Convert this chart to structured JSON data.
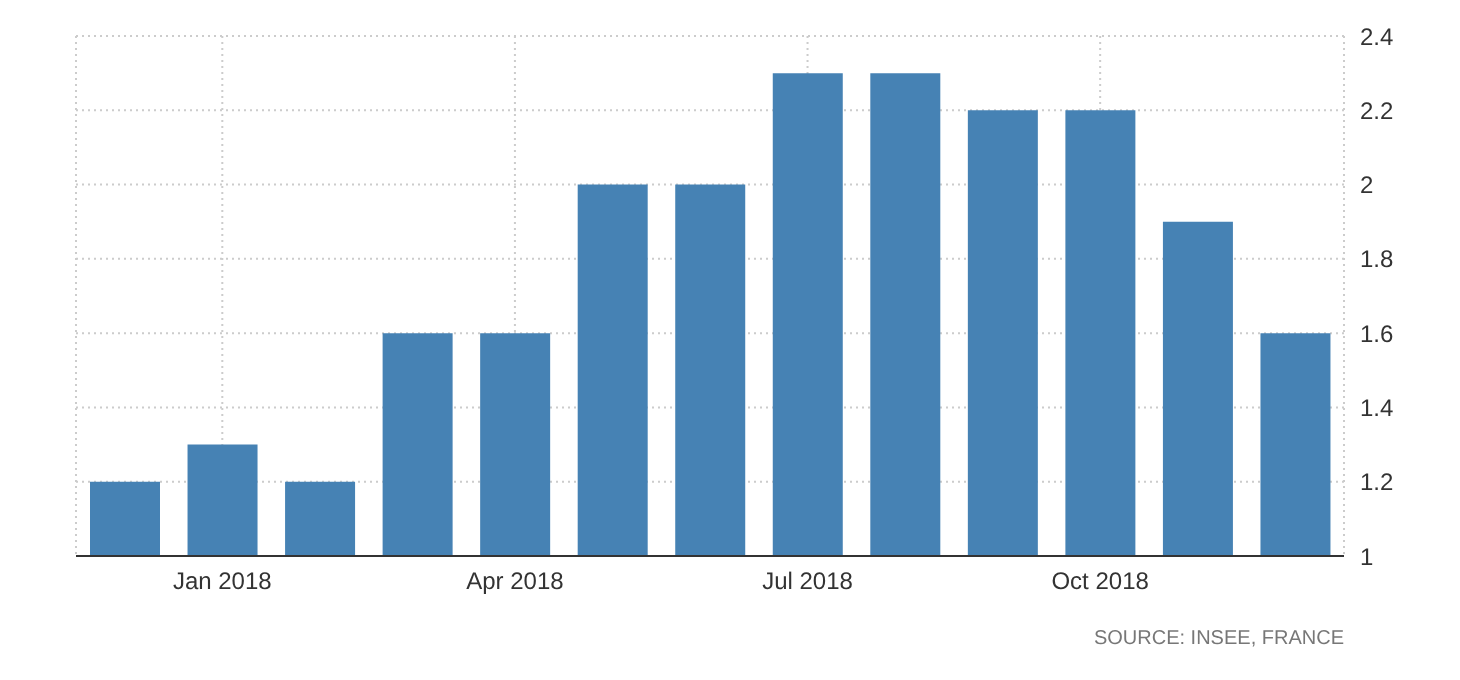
{
  "chart_data": {
    "type": "bar",
    "categories": [
      null,
      "Jan 2018",
      null,
      null,
      "Apr 2018",
      null,
      null,
      "Jul 2018",
      null,
      null,
      "Oct 2018",
      null,
      null
    ],
    "values": [
      1.2,
      1.3,
      1.2,
      1.6,
      1.6,
      2,
      2,
      2.3,
      2.3,
      2.2,
      2.2,
      1.9,
      1.6
    ],
    "color": "#4682b4",
    "ylim": [
      1,
      2.4
    ],
    "yticks": [
      1,
      1.2,
      1.4,
      1.6,
      1.8,
      2,
      2.2,
      2.4
    ],
    "grid": true,
    "annotations": [
      "SOURCE: INSEE, FRANCE"
    ]
  }
}
